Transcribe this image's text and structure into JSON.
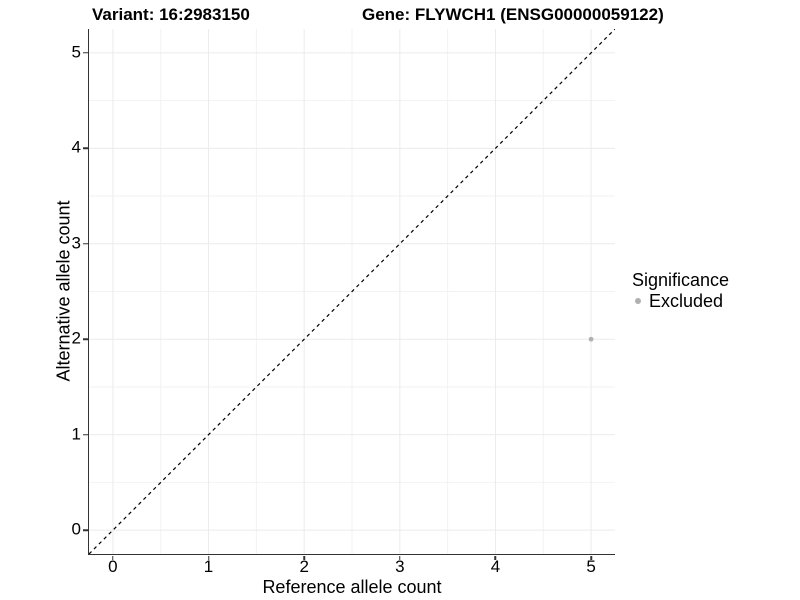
{
  "chart_data": {
    "type": "scatter",
    "titles": {
      "left": "Variant: 16:2983150",
      "right": "Gene: FLYWCH1 (ENSG00000059122)"
    },
    "xlabel": "Reference allele count",
    "ylabel": "Alternative allele count",
    "xlim": [
      -0.25,
      5.25
    ],
    "ylim": [
      -0.25,
      5.25
    ],
    "x_ticks": [
      0,
      1,
      2,
      3,
      4,
      5
    ],
    "y_ticks": [
      0,
      1,
      2,
      3,
      4,
      5
    ],
    "x_minor_ticks": [
      0.5,
      1.5,
      2.5,
      3.5,
      4.5
    ],
    "y_minor_ticks": [
      0.5,
      1.5,
      2.5,
      3.5,
      4.5
    ],
    "grid": "major+minor",
    "series": [
      {
        "name": "Excluded",
        "color": "#b0b0b0",
        "points": [
          {
            "x": 5,
            "y": 2
          }
        ]
      }
    ],
    "reference_line": {
      "kind": "identity y=x",
      "style": "dashed",
      "color": "#000000",
      "from": [
        -0.25,
        -0.25
      ],
      "to": [
        5.25,
        5.25
      ]
    },
    "legend": {
      "title": "Significance",
      "position": "right",
      "entries": [
        {
          "label": "Excluded",
          "marker_color": "#b0b0b0"
        }
      ]
    },
    "colors": {
      "grid_major": "#ebebeb",
      "grid_minor": "#f2f2f2",
      "axis_line": "#333333",
      "text": "#000000"
    }
  }
}
